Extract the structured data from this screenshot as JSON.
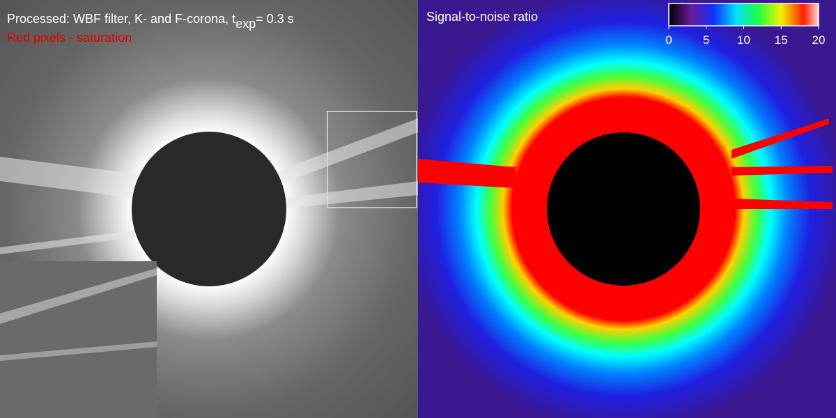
{
  "left_panel": {
    "title": {
      "prefix": "Processed: WBF filter, K- and F-corona, t",
      "subscript": "exp",
      "suffix": "= 0.3 s"
    },
    "note": "Red pixels - saturation"
  },
  "right_panel": {
    "title": "Signal-to-noise ratio",
    "colorbar": {
      "ticks": [
        0,
        5,
        10,
        15,
        20
      ]
    }
  }
}
